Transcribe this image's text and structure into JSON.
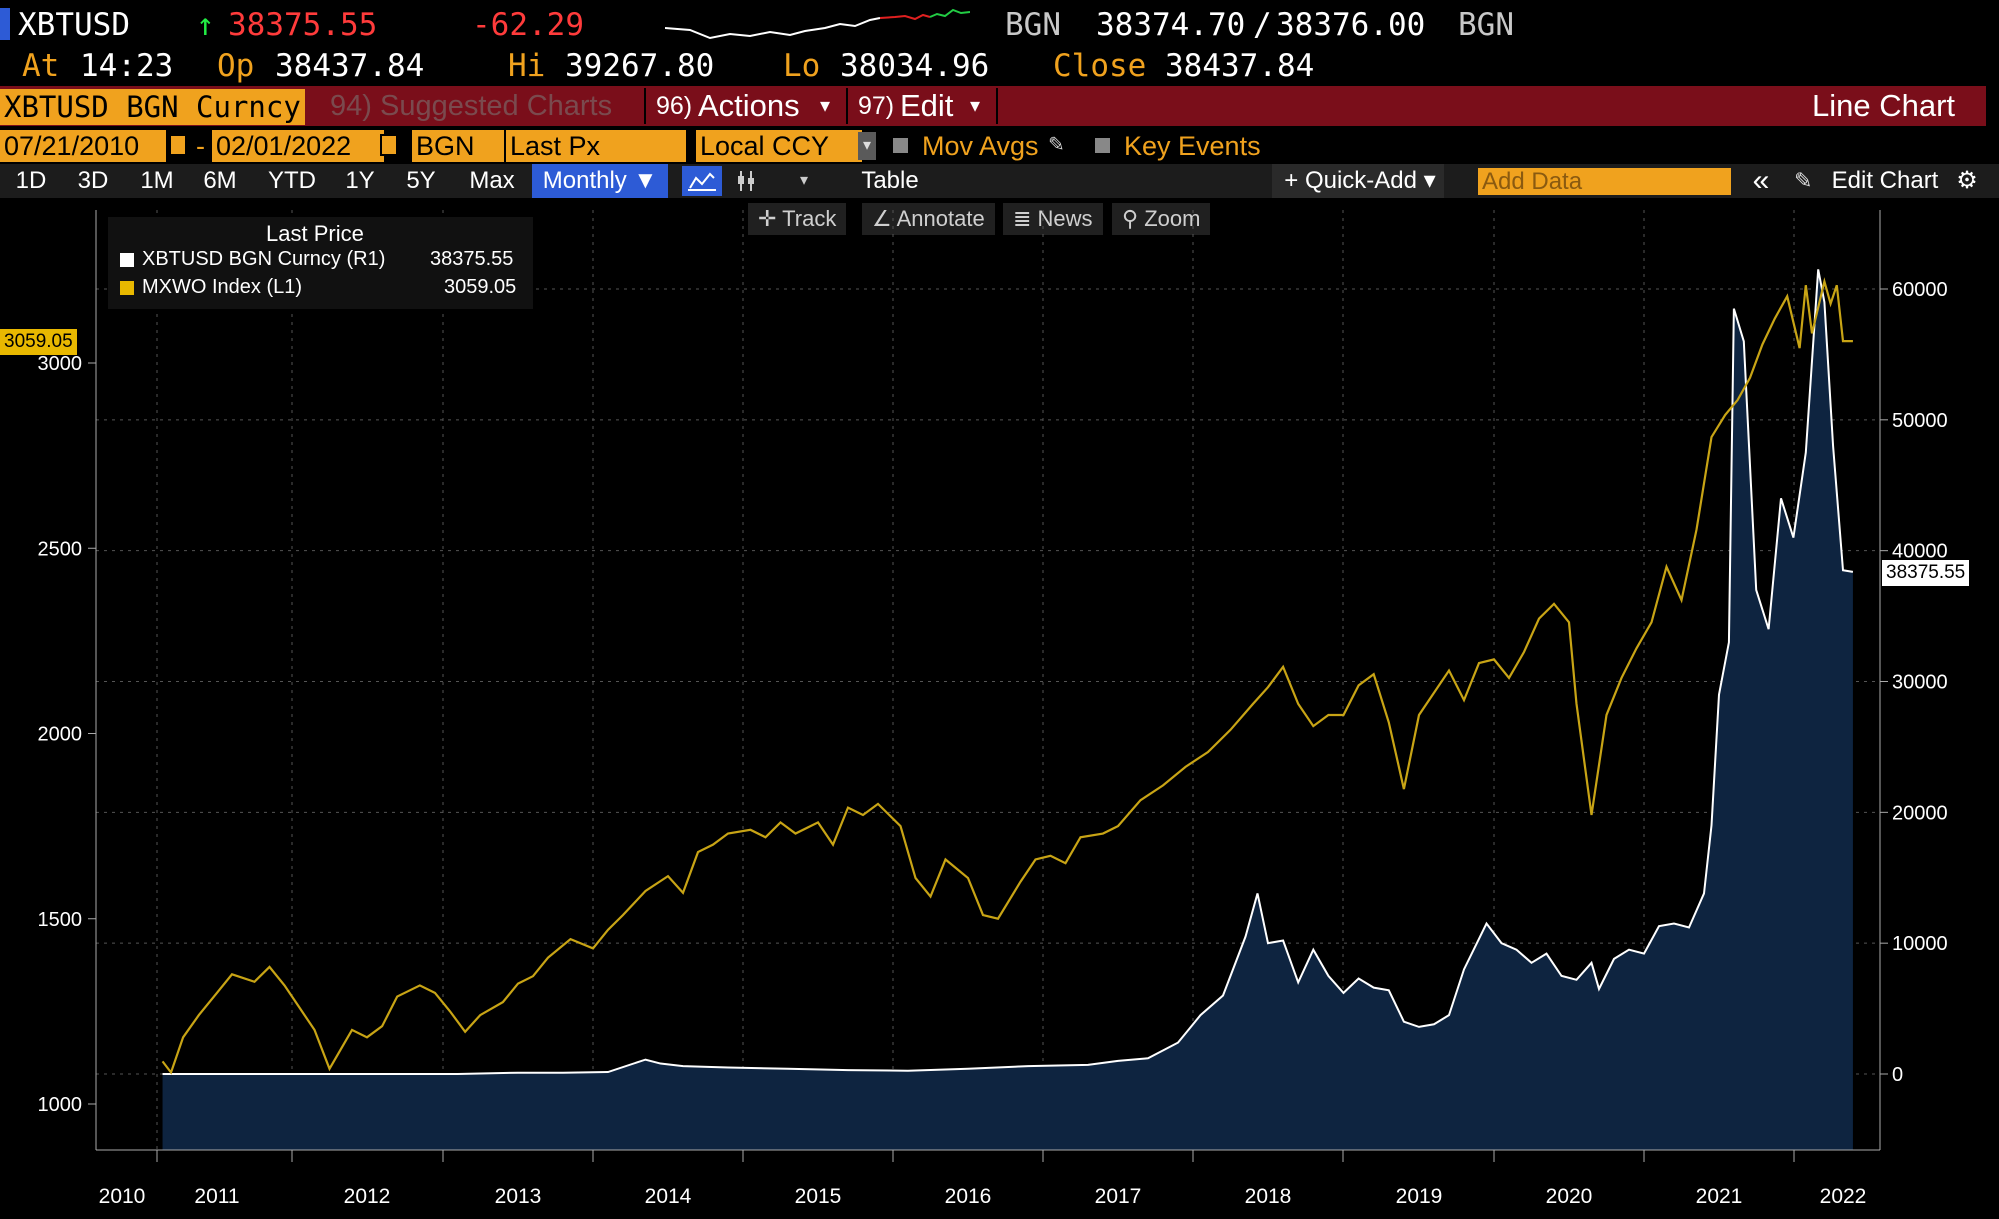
{
  "quote": {
    "ticker": "XBTUSD",
    "arrow": "↑",
    "last": "38375.55",
    "change": "-62.29",
    "bid_src": "BGN",
    "bid": "38374.70",
    "slash": "/",
    "ask": "38376.00",
    "ask_src": "BGN",
    "at_label": "At",
    "time": "14:23",
    "op_label": "Op",
    "open": "38437.84",
    "hi_label": "Hi",
    "high": "39267.80",
    "lo_label": "Lo",
    "low": "38034.96",
    "close_label": "Close",
    "close": "38437.84"
  },
  "toolbar": {
    "security": "XBTUSD BGN Curncy",
    "suggested": "94) Suggested Charts",
    "actions_num": "96)",
    "actions": "Actions",
    "edit_num": "97)",
    "edit": "Edit",
    "chart_type": "Line Chart",
    "caret": "▾"
  },
  "range": {
    "start": "07/21/2010",
    "dash": "-",
    "end": "02/01/2022",
    "source": "BGN",
    "field": "Last Px",
    "currency": "Local CCY",
    "mov_avgs": "Mov Avgs",
    "key_events": "Key Events"
  },
  "periods": {
    "items": [
      "1D",
      "3D",
      "1M",
      "6M",
      "YTD",
      "1Y",
      "5Y",
      "Max"
    ],
    "frequency": "Monthly ▼",
    "table": "Table",
    "quick_add": "+ Quick-Add ▾",
    "add_data_placeholder": "Add Data",
    "collapse": "«",
    "edit_chart": "Edit Chart"
  },
  "chart_tools": [
    "Track",
    "Annotate",
    "News",
    "Zoom"
  ],
  "legend": {
    "title": "Last Price",
    "s1_label": "XBTUSD BGN Curncy  (R1)",
    "s1_value": "38375.55",
    "s2_label": "MXWO Index  (L1)",
    "s2_value": "3059.05"
  },
  "tags": {
    "left": "3059.05",
    "right": "38375.55"
  },
  "colors": {
    "btc_line": "#ffffff",
    "btc_fill": "#0e2440",
    "msci_line": "#c8a415",
    "amber": "#f0a21e",
    "toolbar_red": "#7a0e1a"
  },
  "chart_data": {
    "type": "line",
    "x_ticks": [
      "2010",
      "2011",
      "2012",
      "2013",
      "2014",
      "2015",
      "2016",
      "2017",
      "2018",
      "2019",
      "2020",
      "2021",
      "2022"
    ],
    "left_axis": {
      "ticks": [
        1000,
        1500,
        2000,
        2500,
        3000
      ],
      "range": [
        950,
        3500
      ]
    },
    "right_axis": {
      "ticks": [
        0,
        10000,
        20000,
        30000,
        40000,
        50000,
        60000
      ],
      "range": [
        -6000,
        67000
      ]
    },
    "series": [
      {
        "name": "XBTUSD BGN Curncy",
        "axis": "right",
        "style": "area",
        "x": [
          2010.55,
          2010.8,
          2011.1,
          2011.45,
          2011.8,
          2012.2,
          2012.6,
          2013.0,
          2013.3,
          2013.6,
          2013.85,
          2013.95,
          2014.1,
          2014.4,
          2014.8,
          2015.2,
          2015.6,
          2016.0,
          2016.4,
          2016.8,
          2017.0,
          2017.2,
          2017.4,
          2017.55,
          2017.7,
          2017.85,
          2017.93,
          2018.0,
          2018.1,
          2018.2,
          2018.3,
          2018.4,
          2018.5,
          2018.6,
          2018.7,
          2018.8,
          2018.9,
          2019.0,
          2019.1,
          2019.2,
          2019.3,
          2019.45,
          2019.55,
          2019.65,
          2019.75,
          2019.85,
          2019.95,
          2020.05,
          2020.15,
          2020.2,
          2020.3,
          2020.4,
          2020.5,
          2020.6,
          2020.7,
          2020.8,
          2020.9,
          2020.95,
          2021.0,
          2021.08,
          2021.12,
          2021.2,
          2021.3,
          2021.4,
          2021.5,
          2021.6,
          2021.7,
          2021.8,
          2021.85,
          2021.92,
          2022.0,
          2022.08
        ],
        "values": [
          0,
          0,
          0,
          0,
          0,
          0,
          0,
          100,
          100,
          150,
          1100,
          800,
          600,
          500,
          400,
          300,
          250,
          400,
          600,
          700,
          1000,
          1200,
          2400,
          4500,
          6000,
          10500,
          13800,
          10000,
          10200,
          7000,
          9500,
          7500,
          6200,
          7300,
          6600,
          6400,
          4000,
          3600,
          3800,
          4500,
          8000,
          11500,
          10000,
          9500,
          8500,
          9200,
          7500,
          7200,
          8500,
          6500,
          8800,
          9500,
          9200,
          11300,
          11500,
          11200,
          13800,
          19000,
          29000,
          33000,
          58500,
          56000,
          37000,
          34000,
          44000,
          41000,
          47500,
          61500,
          59000,
          48000,
          38500,
          38375.55
        ]
      },
      {
        "name": "MXWO Index",
        "axis": "left",
        "style": "line",
        "x": [
          2010.55,
          2010.62,
          2010.72,
          2010.85,
          2011.0,
          2011.1,
          2011.25,
          2011.35,
          2011.45,
          2011.55,
          2011.65,
          2011.75,
          2011.9,
          2012.0,
          2012.1,
          2012.2,
          2012.35,
          2012.45,
          2012.55,
          2012.65,
          2012.75,
          2012.9,
          2013.0,
          2013.1,
          2013.2,
          2013.35,
          2013.5,
          2013.6,
          2013.7,
          2013.85,
          2014.0,
          2014.1,
          2014.2,
          2014.3,
          2014.4,
          2014.55,
          2014.65,
          2014.75,
          2014.85,
          2015.0,
          2015.1,
          2015.2,
          2015.3,
          2015.4,
          2015.55,
          2015.65,
          2015.75,
          2015.85,
          2016.0,
          2016.1,
          2016.2,
          2016.35,
          2016.45,
          2016.55,
          2016.65,
          2016.75,
          2016.9,
          2017.0,
          2017.15,
          2017.3,
          2017.45,
          2017.6,
          2017.75,
          2017.9,
          2018.0,
          2018.1,
          2018.2,
          2018.3,
          2018.4,
          2018.5,
          2018.6,
          2018.7,
          2018.8,
          2018.9,
          2019.0,
          2019.1,
          2019.2,
          2019.3,
          2019.4,
          2019.5,
          2019.6,
          2019.7,
          2019.8,
          2019.9,
          2020.0,
          2020.05,
          2020.15,
          2020.25,
          2020.35,
          2020.45,
          2020.55,
          2020.65,
          2020.75,
          2020.85,
          2020.95,
          2021.05,
          2021.15,
          2021.25,
          2021.35,
          2021.45,
          2021.55,
          2021.65,
          2021.7,
          2021.75,
          2021.85,
          2021.9,
          2021.95,
          2022.0,
          2022.08
        ],
        "values": [
          1115,
          1085,
          1180,
          1240,
          1300,
          1350,
          1330,
          1370,
          1320,
          1260,
          1200,
          1095,
          1200,
          1180,
          1210,
          1290,
          1320,
          1300,
          1250,
          1195,
          1240,
          1275,
          1325,
          1345,
          1395,
          1445,
          1420,
          1470,
          1510,
          1575,
          1615,
          1570,
          1680,
          1700,
          1730,
          1740,
          1720,
          1760,
          1730,
          1760,
          1700,
          1800,
          1780,
          1810,
          1750,
          1610,
          1560,
          1660,
          1610,
          1510,
          1500,
          1600,
          1660,
          1670,
          1650,
          1720,
          1730,
          1750,
          1820,
          1860,
          1910,
          1950,
          2010,
          2080,
          2125,
          2180,
          2080,
          2020,
          2050,
          2050,
          2130,
          2160,
          2030,
          1850,
          2050,
          2110,
          2170,
          2090,
          2190,
          2200,
          2150,
          2220,
          2310,
          2350,
          2300,
          2080,
          1780,
          2050,
          2150,
          2230,
          2300,
          2450,
          2360,
          2550,
          2800,
          2860,
          2900,
          2960,
          3050,
          3120,
          3180,
          3040,
          3210,
          3080,
          3220,
          3160,
          3210,
          3059.05,
          3059.05
        ]
      }
    ]
  }
}
